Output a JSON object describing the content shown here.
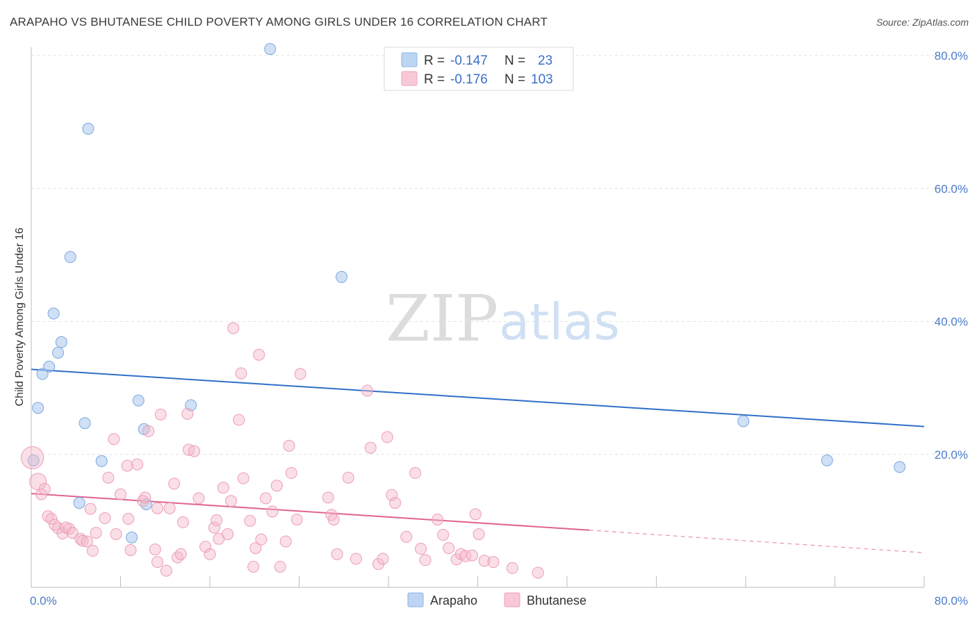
{
  "title": "ARAPAHO VS BHUTANESE CHILD POVERTY AMONG GIRLS UNDER 16 CORRELATION CHART",
  "source": "Source: ZipAtlas.com",
  "watermark": {
    "zip": "ZIP",
    "atlas": "atlas"
  },
  "legend": {
    "r_label": "R =",
    "n_label": "N =",
    "rows": [
      {
        "name": "Arapaho",
        "r": "-0.147",
        "n": "23",
        "color": "#a9c6ec"
      },
      {
        "name": "Bhutanese",
        "r": "-0.176",
        "n": "103",
        "color": "#f5b8ca"
      }
    ]
  },
  "chart_data": {
    "type": "scatter",
    "title": "ARAPAHO VS BHUTANESE CHILD POVERTY AMONG GIRLS UNDER 16 CORRELATION CHART",
    "xlabel": "",
    "ylabel": "Child Poverty Among Girls Under 16",
    "xlim": [
      0,
      80
    ],
    "ylim": [
      0,
      80
    ],
    "x_tick_labels": [
      "0.0%",
      "80.0%"
    ],
    "y_tick_labels": [
      "20.0%",
      "40.0%",
      "60.0%",
      "80.0%"
    ],
    "y_ticks": [
      20,
      40,
      60,
      80
    ],
    "grid": true,
    "legend_position": "top-center",
    "series": [
      {
        "name": "Arapaho",
        "color": "#7aa8e0",
        "trend": {
          "x": [
            0,
            80
          ],
          "y": [
            32.8,
            24.2
          ],
          "color": "#2f6fc9"
        },
        "points": [
          [
            21.4,
            81.0
          ],
          [
            5.1,
            69.0
          ],
          [
            3.5,
            49.7
          ],
          [
            2.0,
            41.2
          ],
          [
            27.8,
            46.7
          ],
          [
            2.7,
            36.9
          ],
          [
            2.4,
            35.3
          ],
          [
            1.6,
            33.2
          ],
          [
            1.0,
            32.1
          ],
          [
            0.6,
            27.0
          ],
          [
            9.6,
            28.1
          ],
          [
            14.3,
            27.4
          ],
          [
            4.8,
            24.7
          ],
          [
            10.1,
            23.8
          ],
          [
            6.3,
            19.0
          ],
          [
            0.2,
            19.1
          ],
          [
            4.3,
            12.7
          ],
          [
            10.3,
            12.5
          ],
          [
            9.0,
            7.5
          ],
          [
            63.8,
            25.0
          ],
          [
            71.3,
            19.1
          ],
          [
            77.8,
            18.1
          ]
        ]
      },
      {
        "name": "Bhutanese",
        "color": "#f0a0b8",
        "trend": {
          "x": [
            0,
            50
          ],
          "y": [
            14.1,
            8.6
          ],
          "color": "#e0638f",
          "dashed_extension": {
            "x": [
              50,
              80
            ],
            "y": [
              8.6,
              5.2
            ]
          }
        },
        "points": [
          [
            0.1,
            19.5
          ],
          [
            0.6,
            15.9
          ],
          [
            0.9,
            14.0
          ],
          [
            1.2,
            14.8
          ],
          [
            1.5,
            10.7
          ],
          [
            1.8,
            10.3
          ],
          [
            2.1,
            9.4
          ],
          [
            2.4,
            8.9
          ],
          [
            2.8,
            8.1
          ],
          [
            3.1,
            9.0
          ],
          [
            3.4,
            8.8
          ],
          [
            3.7,
            8.2
          ],
          [
            4.4,
            7.3
          ],
          [
            4.6,
            7.0
          ],
          [
            5.0,
            6.9
          ],
          [
            5.5,
            5.5
          ],
          [
            5.8,
            8.2
          ],
          [
            6.6,
            10.4
          ],
          [
            5.3,
            11.8
          ],
          [
            6.9,
            16.5
          ],
          [
            7.4,
            22.3
          ],
          [
            8.0,
            14.0
          ],
          [
            7.6,
            8.0
          ],
          [
            8.6,
            18.3
          ],
          [
            8.7,
            10.3
          ],
          [
            8.9,
            5.6
          ],
          [
            9.5,
            18.5
          ],
          [
            10.0,
            13.0
          ],
          [
            10.2,
            13.5
          ],
          [
            10.5,
            23.5
          ],
          [
            11.3,
            11.9
          ],
          [
            11.6,
            26.0
          ],
          [
            11.1,
            5.7
          ],
          [
            11.3,
            3.8
          ],
          [
            12.1,
            2.5
          ],
          [
            12.4,
            11.9
          ],
          [
            12.8,
            15.6
          ],
          [
            13.1,
            4.5
          ],
          [
            13.4,
            5.0
          ],
          [
            13.6,
            9.8
          ],
          [
            14.0,
            26.1
          ],
          [
            14.1,
            20.7
          ],
          [
            14.6,
            20.5
          ],
          [
            15.0,
            13.4
          ],
          [
            15.6,
            6.1
          ],
          [
            16.0,
            5.0
          ],
          [
            16.4,
            9.0
          ],
          [
            16.6,
            10.1
          ],
          [
            16.8,
            7.3
          ],
          [
            17.2,
            15.0
          ],
          [
            17.6,
            8.0
          ],
          [
            17.9,
            13.0
          ],
          [
            18.1,
            39.0
          ],
          [
            18.6,
            25.2
          ],
          [
            18.8,
            32.2
          ],
          [
            19.0,
            16.4
          ],
          [
            19.6,
            10.0
          ],
          [
            19.9,
            3.1
          ],
          [
            20.1,
            5.9
          ],
          [
            20.4,
            35.0
          ],
          [
            20.6,
            7.2
          ],
          [
            21.0,
            13.4
          ],
          [
            21.6,
            11.4
          ],
          [
            22.0,
            15.3
          ],
          [
            22.3,
            3.1
          ],
          [
            22.8,
            6.9
          ],
          [
            23.1,
            21.3
          ],
          [
            23.3,
            17.2
          ],
          [
            23.8,
            10.2
          ],
          [
            24.1,
            32.1
          ],
          [
            26.6,
            13.5
          ],
          [
            26.9,
            10.9
          ],
          [
            27.1,
            10.2
          ],
          [
            27.4,
            5.0
          ],
          [
            28.4,
            16.5
          ],
          [
            29.1,
            4.3
          ],
          [
            30.1,
            29.6
          ],
          [
            30.4,
            21.0
          ],
          [
            31.1,
            3.5
          ],
          [
            31.5,
            4.3
          ],
          [
            31.9,
            22.6
          ],
          [
            32.3,
            13.9
          ],
          [
            32.6,
            12.7
          ],
          [
            33.6,
            7.6
          ],
          [
            34.4,
            17.2
          ],
          [
            34.9,
            5.8
          ],
          [
            35.3,
            4.1
          ],
          [
            36.4,
            10.2
          ],
          [
            36.9,
            7.9
          ],
          [
            37.4,
            5.9
          ],
          [
            38.1,
            4.2
          ],
          [
            38.5,
            5.0
          ],
          [
            38.9,
            4.7
          ],
          [
            39.5,
            4.8
          ],
          [
            39.8,
            11.0
          ],
          [
            40.1,
            8.0
          ],
          [
            40.6,
            4.0
          ],
          [
            41.4,
            3.8
          ],
          [
            43.1,
            2.9
          ],
          [
            45.4,
            2.2
          ]
        ]
      }
    ]
  }
}
